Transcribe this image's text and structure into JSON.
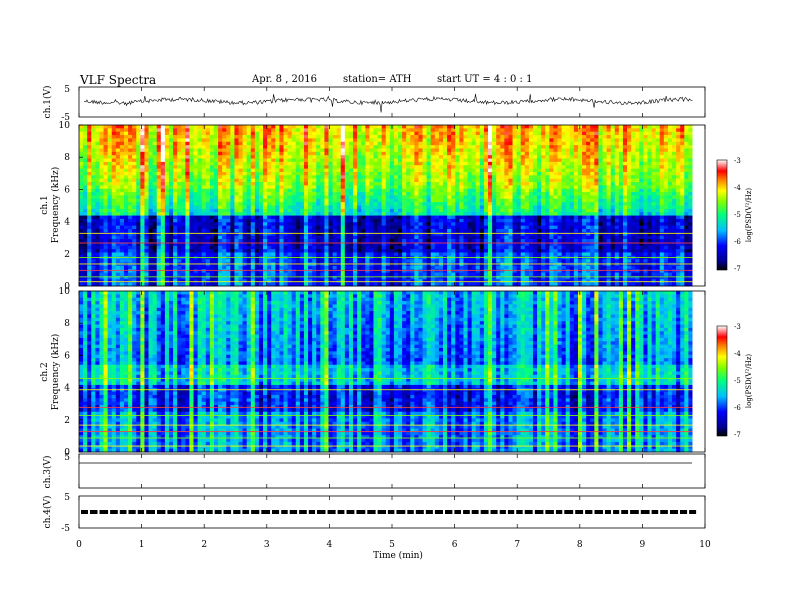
{
  "header": {
    "title": "VLF  Spectra",
    "date": "Apr. 8  , 2016",
    "station": "station= ATH",
    "start_ut": "start  UT  =   4  : 0  : 1"
  },
  "chart_data": [
    {
      "type": "line",
      "panel": "ch1-waveform",
      "ylabel": "ch.1(V)",
      "ylim": [
        -5,
        5
      ],
      "y_ticks": [
        "5",
        "-5"
      ],
      "xlim": [
        0,
        10
      ],
      "baseline": 0,
      "trace_color": "#000000"
    },
    {
      "type": "heatmap",
      "panel": "ch1-spectrogram",
      "ylabel_top": "ch.1",
      "ylabel": "Frequency  (kHz)",
      "ylim": [
        0,
        10
      ],
      "y_ticks": [
        "0",
        "2",
        "4",
        "6",
        "8",
        "10"
      ],
      "xlim": [
        0,
        9.8
      ],
      "colorbar": {
        "label": "log(PSD(V²/Hz)",
        "range": [
          -7,
          -3
        ],
        "ticks": [
          "-3",
          "-4",
          "-5",
          "-6",
          "-7"
        ]
      }
    },
    {
      "type": "heatmap",
      "panel": "ch2-spectrogram",
      "ylabel_top": "ch.2",
      "ylabel": "Frequency  (kHz)",
      "ylim": [
        0,
        10
      ],
      "y_ticks": [
        "0",
        "2",
        "4",
        "6",
        "8",
        "10"
      ],
      "xlim": [
        0,
        9.8
      ],
      "colorbar": {
        "label": "log(PSD(V²/Hz)",
        "range": [
          -7,
          -3
        ],
        "ticks": [
          "-3",
          "-4",
          "-5",
          "-6",
          "-7"
        ]
      }
    },
    {
      "type": "line",
      "panel": "ch3-waveform",
      "ylabel": "ch.3(V)",
      "ylim": [
        -5,
        5
      ],
      "y_ticks": [
        "5"
      ],
      "xlim": [
        0,
        10
      ],
      "baseline": 0
    },
    {
      "type": "line",
      "panel": "ch4-waveform",
      "ylabel": "ch.4(V)",
      "ylim": [
        -5,
        5
      ],
      "y_ticks": [
        "5",
        "-5"
      ],
      "xlim": [
        0,
        10
      ],
      "baseline": 0
    }
  ],
  "x_axis": {
    "label": "Time  (min)",
    "ticks": [
      "0",
      "1",
      "2",
      "3",
      "4",
      "5",
      "6",
      "7",
      "8",
      "9",
      "10"
    ],
    "range": [
      0,
      10
    ]
  }
}
